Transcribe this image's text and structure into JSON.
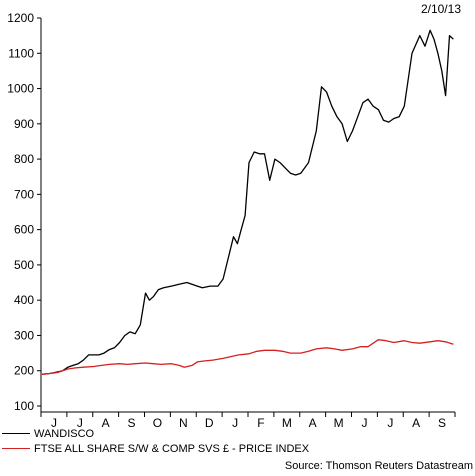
{
  "date_label": "2/10/13",
  "source": "Source: Thomson Reuters Datastream",
  "chart_data": {
    "type": "line",
    "title": "",
    "xlabel": "",
    "ylabel": "",
    "ylim": [
      100,
      1200
    ],
    "yticks": [
      100,
      200,
      300,
      400,
      500,
      600,
      700,
      800,
      900,
      1000,
      1100,
      1200
    ],
    "grid": false,
    "legend_position": "bottom-left",
    "x_tick_labels": [
      "J",
      "J",
      "A",
      "S",
      "O",
      "N",
      "D",
      "J",
      "F",
      "M",
      "A",
      "M",
      "J",
      "J",
      "A",
      "S"
    ],
    "series": [
      {
        "name": "WANDISCO",
        "color": "#000000",
        "x": [
          0,
          0.3,
          0.5,
          0.8,
          1.0,
          1.2,
          1.4,
          1.6,
          1.8,
          2.0,
          2.2,
          2.4,
          2.6,
          2.8,
          3.0,
          3.2,
          3.4,
          3.6,
          3.8,
          4.0,
          4.15,
          4.3,
          4.5,
          4.7,
          5.0,
          5.3,
          5.6,
          6.0,
          6.2,
          6.5,
          6.8,
          7.0,
          7.2,
          7.4,
          7.55,
          7.7,
          7.85,
          8.0,
          8.2,
          8.4,
          8.6,
          8.8,
          9.0,
          9.2,
          9.4,
          9.6,
          9.8,
          10.0,
          10.3,
          10.6,
          10.8,
          11.0,
          11.2,
          11.4,
          11.6,
          11.8,
          12.0,
          12.2,
          12.4,
          12.6,
          12.8,
          13.0,
          13.2,
          13.4,
          13.6,
          13.8,
          14.0,
          14.3,
          14.6,
          14.8,
          15.0,
          15.15,
          15.3,
          15.45,
          15.6,
          15.75,
          15.9
        ],
        "values": [
          190,
          192,
          195,
          200,
          210,
          215,
          220,
          230,
          245,
          245,
          245,
          250,
          260,
          265,
          280,
          300,
          310,
          305,
          330,
          420,
          400,
          410,
          430,
          435,
          440,
          445,
          450,
          440,
          435,
          440,
          440,
          460,
          520,
          580,
          560,
          600,
          640,
          790,
          820,
          815,
          815,
          740,
          800,
          790,
          775,
          760,
          755,
          760,
          790,
          880,
          1005,
          990,
          950,
          920,
          900,
          850,
          880,
          920,
          960,
          970,
          950,
          940,
          910,
          905,
          915,
          920,
          950,
          1100,
          1150,
          1120,
          1165,
          1140,
          1100,
          1050,
          980,
          1150,
          1140
        ]
      },
      {
        "name": "FTSE ALL SHARE S/W & COMP SVS £ - PRICE INDEX",
        "color": "#d6201f",
        "x": [
          0,
          0.3,
          0.6,
          1.0,
          1.3,
          1.6,
          2.0,
          2.3,
          2.6,
          3.0,
          3.3,
          3.6,
          4.0,
          4.3,
          4.6,
          5.0,
          5.3,
          5.5,
          5.8,
          6.0,
          6.3,
          6.6,
          7.0,
          7.3,
          7.6,
          8.0,
          8.3,
          8.6,
          9.0,
          9.3,
          9.6,
          10.0,
          10.3,
          10.6,
          11.0,
          11.3,
          11.6,
          12.0,
          12.3,
          12.6,
          13.0,
          13.3,
          13.6,
          14.0,
          14.3,
          14.6,
          15.0,
          15.3,
          15.6,
          15.9
        ],
        "values": [
          190,
          192,
          195,
          205,
          208,
          210,
          212,
          215,
          218,
          220,
          218,
          220,
          222,
          220,
          218,
          220,
          215,
          210,
          215,
          225,
          228,
          230,
          235,
          240,
          245,
          248,
          255,
          258,
          258,
          255,
          250,
          250,
          255,
          262,
          265,
          262,
          258,
          262,
          268,
          268,
          288,
          285,
          280,
          285,
          280,
          278,
          282,
          285,
          282,
          275
        ]
      }
    ]
  }
}
